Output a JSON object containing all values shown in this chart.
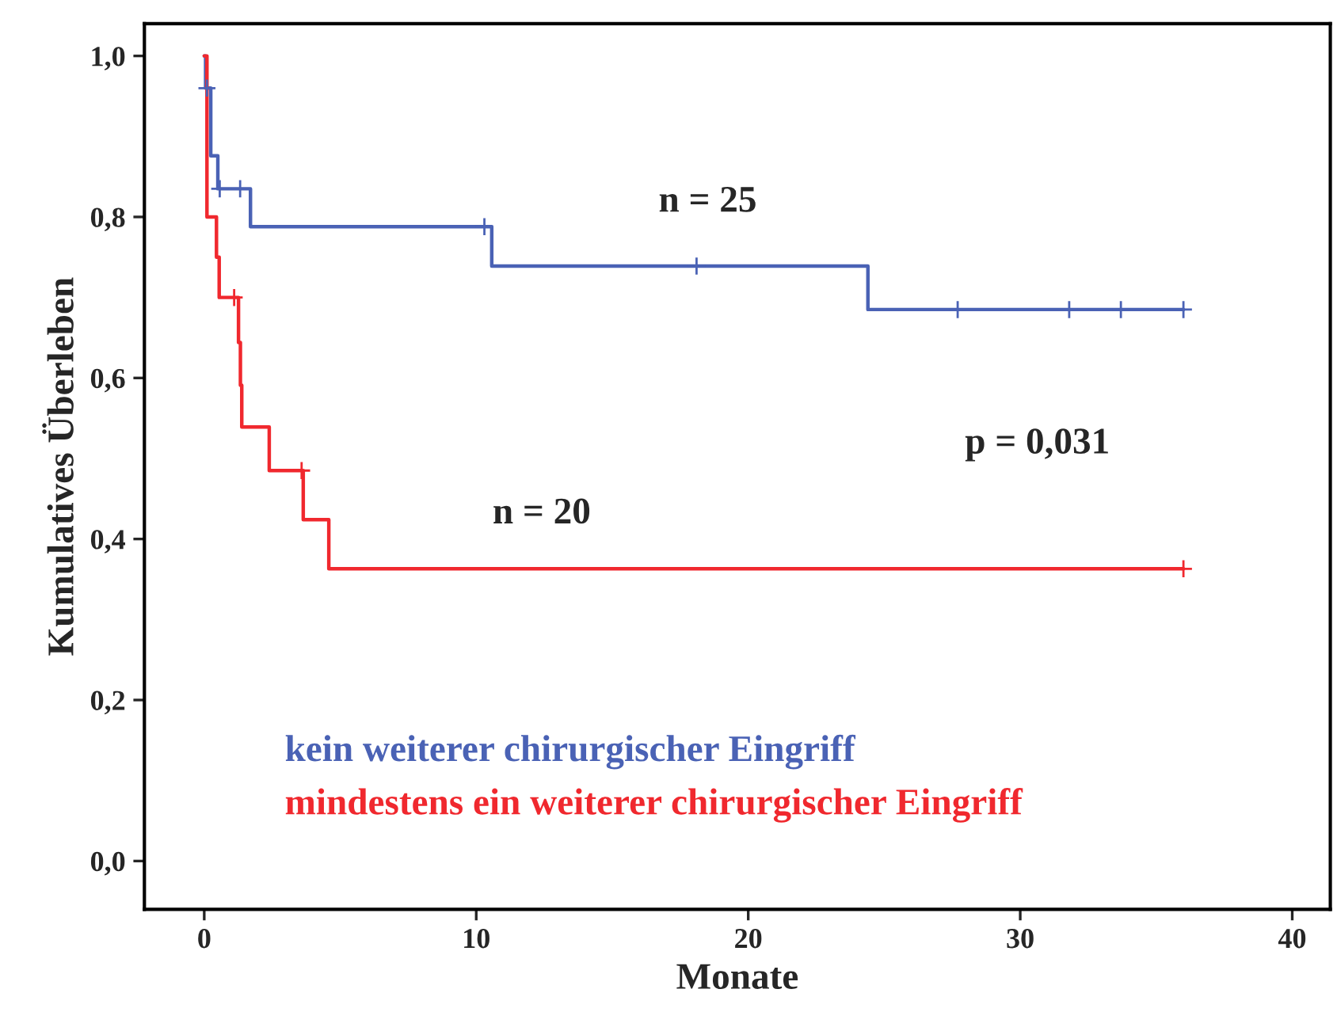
{
  "chart_data": {
    "type": "step",
    "xlabel": "Monate",
    "ylabel": "Kumulatives Überleben",
    "xlim": [
      -2.2,
      41.4
    ],
    "xticks": [
      0,
      10,
      20,
      30,
      40
    ],
    "ylim": [
      -0.06,
      1.04
    ],
    "yticks": [
      {
        "value": 0,
        "label": "0,0"
      },
      {
        "value": 0.2,
        "label": "0,2"
      },
      {
        "value": 0.4,
        "label": "0,4"
      },
      {
        "value": 0.6,
        "label": "0,6"
      },
      {
        "value": 0.8,
        "label": "0,8"
      },
      {
        "value": 1.0,
        "label": "1,0"
      }
    ],
    "grid": false,
    "legend": "bottom left",
    "series": [
      {
        "name": "kein weiterer chirurgischer Eingriff",
        "color": "#4a62b5",
        "x": [
          0,
          0.05,
          0.24,
          0.5,
          1.7,
          10.57,
          24.4,
          36.0
        ],
        "values": [
          1.0,
          0.96,
          0.876,
          0.835,
          0.788,
          0.739,
          0.685,
          0.685
        ]
      },
      {
        "name": "mindestens ein weiterer chirurgischer Eingriff",
        "color": "#f0282e",
        "x": [
          0,
          0.1,
          0.45,
          0.55,
          1.26,
          1.33,
          1.38,
          2.39,
          3.64,
          4.58,
          36.0
        ],
        "values": [
          1.0,
          0.8,
          0.75,
          0.7,
          0.644,
          0.591,
          0.539,
          0.485,
          0.424,
          0.363,
          0.363
        ]
      },
      {
        "type": "scatter",
        "marker": "cross",
        "color": "#4a62b5",
        "x": [
          0.1,
          0.57,
          1.32,
          10.3,
          18.1,
          27.7,
          31.8,
          33.7,
          36.0
        ],
        "values": [
          0.96,
          0.835,
          0.835,
          0.788,
          0.739,
          0.685,
          0.685,
          0.685,
          0.685
        ]
      },
      {
        "type": "scatter",
        "marker": "cross",
        "color": "#f0282e",
        "x": [
          1.1,
          3.58,
          36.0
        ],
        "values": [
          0.7,
          0.485,
          0.363
        ]
      }
    ],
    "annotations": [
      "n = 25",
      "n = 20",
      "p = 0,031"
    ]
  }
}
